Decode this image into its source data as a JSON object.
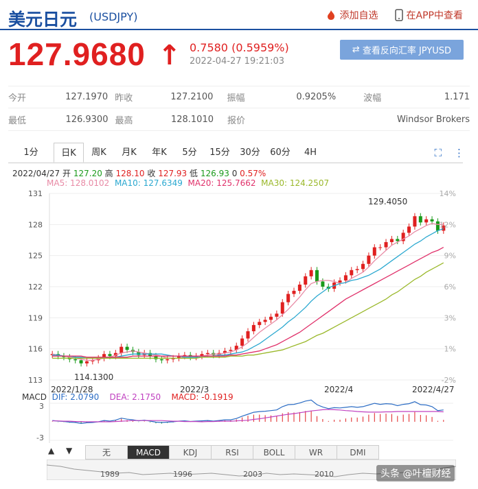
{
  "header": {
    "title": "美元日元",
    "code": "(USDJPY)",
    "add_watch": "添加自选",
    "open_app": "在APP中查看"
  },
  "quote": {
    "price": "127.9680",
    "change": "0.7580 (0.5959%)",
    "time": "2022-04-27 19:21:03",
    "reverse_label": "查看反向汇率 JPYUSD"
  },
  "stats": {
    "open_l": "今开",
    "open_v": "127.1970",
    "prev_l": "昨收",
    "prev_v": "127.2100",
    "amp_l": "振幅",
    "amp_v": "0.9205%",
    "wave_l": "波幅",
    "wave_v": "1.171",
    "low_l": "最低",
    "low_v": "126.9300",
    "high_l": "最高",
    "high_v": "128.1010",
    "quote_l": "报价",
    "quote_v": "Windsor Brokers"
  },
  "tabs": [
    "1分",
    "日K",
    "周K",
    "月K",
    "年K",
    "5分",
    "15分",
    "30分",
    "60分",
    "4H"
  ],
  "ohlc": {
    "date": "2022/04/27",
    "open_l": "开",
    "open": "127.20",
    "high_l": "高",
    "high": "128.10",
    "close_l": "收",
    "close": "127.93",
    "low_l": "低",
    "low": "126.93",
    "vol": "0",
    "pct": "0.57%"
  },
  "ma": {
    "ma5": "MA5: 128.0102",
    "ma10": "MA10: 127.6349",
    "ma20": "MA20: 125.7662",
    "ma30": "MA30: 124.2507"
  },
  "colors": {
    "up": "#e02020",
    "down": "#1a9a1a",
    "ma5": "#e88aa5",
    "ma10": "#2aa8d0",
    "ma20": "#e0306a",
    "ma30": "#9ab82a"
  },
  "chart_data": {
    "type": "candlestick",
    "y_ticks": [
      "131",
      "128",
      "125",
      "122",
      "119",
      "116",
      "113"
    ],
    "pct_ticks": [
      "14%",
      "12%",
      "9%",
      "6%",
      "3%",
      "1%",
      "-2%"
    ],
    "x_ticks": [
      "2022/1/28",
      "2022/3",
      "2022/4",
      "2022/4/27"
    ],
    "ylim": [
      113,
      131
    ],
    "max_label": "129.4050",
    "min_label": "114.1300",
    "closes": [
      115.5,
      115.3,
      115.2,
      115.0,
      114.9,
      114.6,
      114.8,
      114.9,
      115.1,
      115.5,
      115.3,
      115.6,
      116.2,
      115.9,
      115.7,
      115.4,
      115.6,
      115.3,
      115.0,
      114.9,
      115.0,
      115.1,
      115.3,
      115.4,
      115.2,
      115.3,
      115.5,
      115.6,
      115.4,
      115.6,
      115.8,
      115.9,
      116.3,
      117.0,
      117.7,
      118.3,
      118.6,
      118.8,
      119.1,
      119.4,
      120.5,
      121.3,
      121.6,
      122.2,
      123.0,
      123.6,
      122.5,
      122.0,
      121.8,
      122.4,
      122.6,
      123.1,
      123.6,
      123.7,
      124.2,
      125.0,
      125.8,
      125.8,
      126.3,
      126.6,
      126.4,
      127.2,
      127.8,
      128.8,
      128.2,
      128.5,
      128.3,
      127.4,
      127.9
    ],
    "ma_series": {
      "ma5": [
        115.5,
        115.4,
        115.3,
        115.2,
        115.1,
        115.0,
        114.9,
        114.9,
        115.0,
        115.1,
        115.2,
        115.4,
        115.6,
        115.7,
        115.8,
        115.7,
        115.6,
        115.5,
        115.4,
        115.3,
        115.1,
        115.1,
        115.1,
        115.2,
        115.2,
        115.3,
        115.3,
        115.4,
        115.5,
        115.5,
        115.6,
        115.7,
        115.9,
        116.2,
        116.6,
        117.1,
        117.6,
        118.0,
        118.4,
        118.8,
        119.3,
        119.8,
        120.4,
        121.0,
        121.7,
        122.3,
        122.5,
        122.6,
        122.6,
        122.5,
        122.3,
        122.4,
        122.8,
        123.1,
        123.4,
        123.9,
        124.5,
        125.0,
        125.5,
        126.0,
        126.3,
        126.6,
        126.9,
        127.3,
        127.6,
        127.9,
        128.1,
        128.0,
        128.0
      ],
      "ma10": [
        115.4,
        115.4,
        115.3,
        115.3,
        115.2,
        115.2,
        115.1,
        115.1,
        115.1,
        115.1,
        115.1,
        115.2,
        115.3,
        115.4,
        115.5,
        115.5,
        115.5,
        115.5,
        115.5,
        115.5,
        115.4,
        115.3,
        115.3,
        115.2,
        115.2,
        115.2,
        115.2,
        115.3,
        115.3,
        115.4,
        115.4,
        115.5,
        115.6,
        115.7,
        115.9,
        116.2,
        116.5,
        116.9,
        117.3,
        117.7,
        118.1,
        118.6,
        119.0,
        119.5,
        120.0,
        120.6,
        121.1,
        121.5,
        121.9,
        122.1,
        122.3,
        122.4,
        122.6,
        122.7,
        122.9,
        123.1,
        123.4,
        123.7,
        124.1,
        124.5,
        124.9,
        125.3,
        125.7,
        126.1,
        126.4,
        126.8,
        127.1,
        127.4,
        127.6
      ],
      "ma20": [
        115.3,
        115.3,
        115.3,
        115.3,
        115.3,
        115.3,
        115.2,
        115.2,
        115.2,
        115.2,
        115.2,
        115.2,
        115.2,
        115.2,
        115.3,
        115.3,
        115.3,
        115.3,
        115.3,
        115.3,
        115.3,
        115.3,
        115.3,
        115.3,
        115.3,
        115.3,
        115.3,
        115.3,
        115.3,
        115.3,
        115.3,
        115.4,
        115.4,
        115.5,
        115.6,
        115.7,
        115.8,
        116.0,
        116.2,
        116.4,
        116.7,
        117.0,
        117.3,
        117.6,
        118.0,
        118.4,
        118.8,
        119.2,
        119.6,
        120.0,
        120.4,
        120.8,
        121.1,
        121.4,
        121.7,
        122.0,
        122.3,
        122.6,
        122.9,
        123.2,
        123.5,
        123.8,
        124.1,
        124.4,
        124.7,
        125.0,
        125.3,
        125.5,
        125.8
      ],
      "ma30": [
        115.1,
        115.1,
        115.1,
        115.1,
        115.1,
        115.1,
        115.1,
        115.1,
        115.1,
        115.1,
        115.1,
        115.1,
        115.1,
        115.1,
        115.1,
        115.1,
        115.1,
        115.1,
        115.1,
        115.1,
        115.1,
        115.1,
        115.1,
        115.1,
        115.1,
        115.1,
        115.2,
        115.2,
        115.2,
        115.2,
        115.2,
        115.3,
        115.3,
        115.3,
        115.4,
        115.4,
        115.5,
        115.6,
        115.7,
        115.8,
        115.9,
        116.1,
        116.3,
        116.5,
        116.7,
        117.0,
        117.3,
        117.5,
        117.8,
        118.1,
        118.4,
        118.7,
        119.0,
        119.3,
        119.6,
        119.9,
        120.2,
        120.5,
        120.8,
        121.2,
        121.5,
        121.9,
        122.3,
        122.7,
        123.0,
        123.4,
        123.7,
        124.0,
        124.3
      ]
    },
    "macd": {
      "legend_l": "MACD",
      "dif": "DIF: 2.0790",
      "dea": "DEA: 2.1750",
      "macd": "MACD: -0.1919",
      "y_ticks": [
        "3",
        "-3"
      ]
    }
  },
  "bottom_tabs": [
    "无",
    "MACD",
    "KDJ",
    "RSI",
    "BOLL",
    "WR",
    "DMI"
  ],
  "timeline_years": [
    "1989",
    "1996",
    "2003",
    "2010"
  ],
  "watermark": "头条 @叶檀财经"
}
